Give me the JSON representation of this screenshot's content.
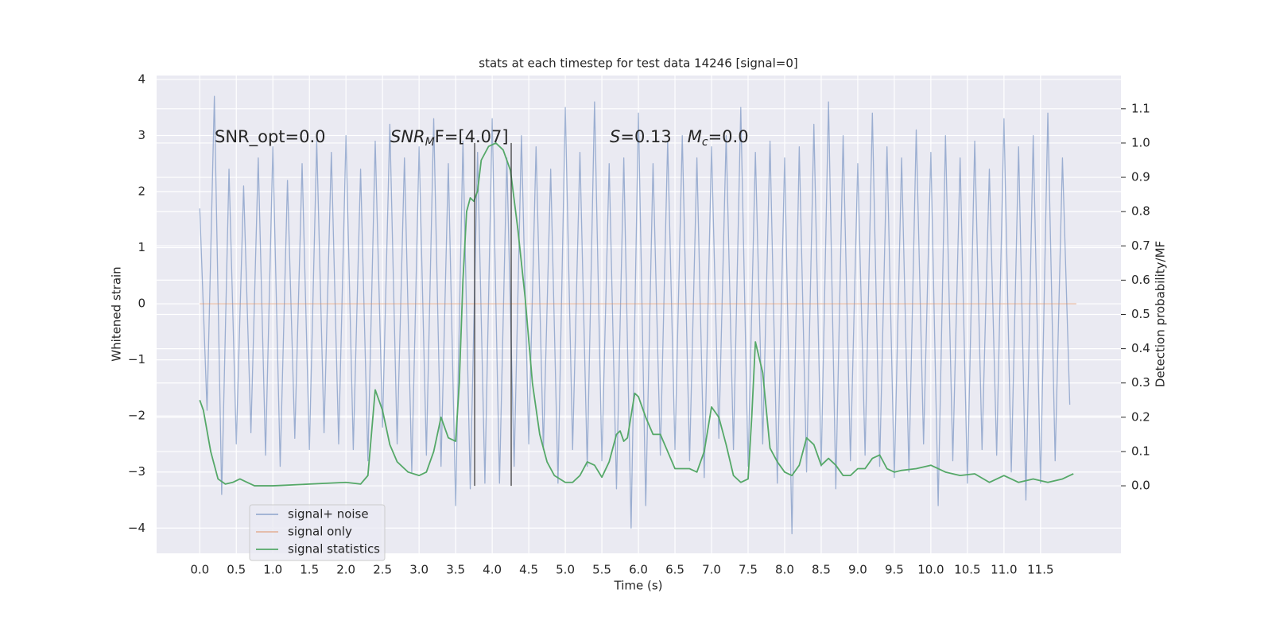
{
  "chart_data": {
    "type": "line",
    "title": "stats at each timestep for test data 14246 [signal=0]",
    "xlabel": "Time (s)",
    "ylabel": "Whitened strain",
    "y2label": "Detection probability/MF",
    "grid": true,
    "legend": "lower left",
    "xlim": [
      -0.59,
      12.6
    ],
    "ylim": [
      -4.45,
      4.07
    ],
    "y2lim": [
      -0.197,
      1.197
    ],
    "xticks": [
      {
        "value": 0,
        "label": "0.0"
      },
      0.5,
      {
        "value": 1,
        "label": "1.0"
      },
      1.5,
      {
        "value": 2,
        "label": "2.0"
      },
      2.5,
      {
        "value": 3,
        "label": "3.0"
      },
      3.5,
      {
        "value": 4,
        "label": "4.0"
      },
      4.5,
      {
        "value": 5,
        "label": "5.0"
      },
      5.5,
      {
        "value": 6,
        "label": "6.0"
      },
      6.5,
      {
        "value": 7,
        "label": "7.0"
      },
      7.5,
      {
        "value": 8,
        "label": "8.0"
      },
      8.5,
      {
        "value": 9,
        "label": "9.0"
      },
      9.5,
      {
        "value": 10,
        "label": "10.0"
      },
      10.5,
      {
        "value": 11,
        "label": "11.0"
      },
      11.5
    ],
    "yticks": [
      {
        "value": -4,
        "label": "−4"
      },
      {
        "value": -3,
        "label": "−3"
      },
      {
        "value": -2,
        "label": "−2"
      },
      {
        "value": -1,
        "label": "−1"
      },
      0,
      1,
      2,
      3,
      4
    ],
    "y2ticks": [
      {
        "value": 0,
        "label": "0.0"
      },
      0.1,
      0.2,
      0.3,
      0.4,
      0.5,
      0.6,
      0.7,
      0.8,
      0.9,
      {
        "value": 1,
        "label": "1.0"
      },
      1.1
    ],
    "annotations": [
      [
        {
          "text": "SNR_opt=0.0"
        }
      ],
      [
        {
          "text": "SNR",
          "italic": true
        },
        {
          "text": "M",
          "italic": true,
          "sub": true
        },
        {
          "text": "F=[4.07]"
        }
      ],
      [
        {
          "text": "S",
          "italic": true
        },
        {
          "text": "=0.13   "
        },
        {
          "text": "M",
          "italic": true
        },
        {
          "text": "c",
          "italic": true,
          "sub": true
        },
        {
          "text": "=0.0"
        }
      ]
    ],
    "vlines": {
      "x": [
        3.76,
        4.26
      ],
      "ymin": 0,
      "ymax": 1.0,
      "axis": "y2",
      "color": "#333333"
    },
    "series": [
      {
        "name": "signal+ noise",
        "color": "#4c72b0",
        "opacity": 0.5,
        "x": [
          0,
          0.1,
          0.2,
          0.3,
          0.4,
          0.5,
          0.6,
          0.7,
          0.8,
          0.9,
          1,
          1.1,
          1.2,
          1.3,
          1.4,
          1.5,
          1.6,
          1.7,
          1.8,
          1.9,
          2,
          2.1,
          2.2,
          2.3,
          2.4,
          2.5,
          2.6,
          2.7,
          2.8,
          2.9,
          3,
          3.1,
          3.2,
          3.3,
          3.4,
          3.5,
          3.6,
          3.7,
          3.8,
          3.9,
          4,
          4.1,
          4.2,
          4.3,
          4.4,
          4.5,
          4.6,
          4.7,
          4.8,
          4.9,
          5,
          5.1,
          5.2,
          5.3,
          5.4,
          5.5,
          5.6,
          5.7,
          5.8,
          5.9,
          6,
          6.1,
          6.2,
          6.3,
          6.4,
          6.5,
          6.6,
          6.7,
          6.8,
          6.9,
          7,
          7.1,
          7.2,
          7.3,
          7.4,
          7.5,
          7.6,
          7.7,
          7.8,
          7.9,
          8,
          8.1,
          8.2,
          8.3,
          8.4,
          8.5,
          8.6,
          8.7,
          8.8,
          8.9,
          9,
          9.1,
          9.2,
          9.3,
          9.4,
          9.5,
          9.6,
          9.7,
          9.8,
          9.9,
          10,
          10.1,
          10.2,
          10.3,
          10.4,
          10.5,
          10.6,
          10.7,
          10.8,
          10.9,
          11,
          11.1,
          11.2,
          11.3,
          11.4,
          11.5,
          11.6,
          11.7,
          11.8,
          11.9
        ],
        "values": [
          1.7,
          -1.9,
          3.7,
          -3.4,
          2.4,
          -2.5,
          2.1,
          -2.3,
          2.6,
          -2.7,
          2.8,
          -2.9,
          2.2,
          -2.4,
          2.5,
          -2.6,
          2.9,
          -2.3,
          2.7,
          -2.5,
          3.0,
          -2.6,
          2.4,
          -2.8,
          2.9,
          -2.2,
          3.2,
          -2.5,
          2.6,
          -3.0,
          2.8,
          -2.7,
          3.3,
          -2.9,
          2.5,
          -3.6,
          2.9,
          -3.3,
          2.7,
          -3.2,
          3.3,
          -3.2,
          2.6,
          -2.9,
          3.0,
          -2.5,
          2.8,
          -2.6,
          2.4,
          -3.2,
          3.5,
          -2.6,
          2.7,
          -2.9,
          3.6,
          -2.8,
          2.5,
          -3.3,
          2.6,
          -4.0,
          3.4,
          -3.6,
          2.5,
          -2.7,
          2.9,
          -2.6,
          3.0,
          -2.8,
          2.6,
          -3.1,
          2.8,
          -2.4,
          3.0,
          -2.6,
          3.5,
          -2.9,
          2.7,
          -2.5,
          2.9,
          -3.2,
          2.6,
          -4.1,
          2.8,
          -3.0,
          3.2,
          -2.9,
          3.6,
          -3.3,
          3.0,
          -2.8,
          2.5,
          -2.7,
          3.4,
          -2.9,
          2.8,
          -3.1,
          2.6,
          -3.0,
          3.1,
          -2.5,
          2.7,
          -3.6,
          3.0,
          -2.8,
          2.6,
          -3.2,
          2.9,
          -2.6,
          2.4,
          -2.7,
          3.3,
          -3.0,
          2.8,
          -3.5,
          3.0,
          -3.2,
          3.4,
          -2.8,
          2.6,
          -1.8
        ]
      },
      {
        "name": "signal only",
        "color": "#dd8452",
        "opacity": 0.5,
        "x": [
          0,
          11.99
        ],
        "values": [
          0,
          0
        ]
      },
      {
        "name": "signal statistics",
        "color": "#55a868",
        "opacity": 1,
        "axis": "y2",
        "x": [
          0,
          0.05,
          0.15,
          0.25,
          0.35,
          0.45,
          0.55,
          0.65,
          0.75,
          1.0,
          1.5,
          2.0,
          2.2,
          2.3,
          2.4,
          2.5,
          2.6,
          2.7,
          2.85,
          3.0,
          3.1,
          3.2,
          3.3,
          3.4,
          3.5,
          3.55,
          3.6,
          3.65,
          3.7,
          3.75,
          3.8,
          3.85,
          3.95,
          4.05,
          4.15,
          4.25,
          4.35,
          4.45,
          4.55,
          4.65,
          4.75,
          4.85,
          5.0,
          5.1,
          5.2,
          5.3,
          5.4,
          5.5,
          5.6,
          5.7,
          5.75,
          5.8,
          5.85,
          5.95,
          6.0,
          6.1,
          6.2,
          6.3,
          6.4,
          6.5,
          6.7,
          6.8,
          6.9,
          7.0,
          7.1,
          7.2,
          7.3,
          7.4,
          7.5,
          7.55,
          7.6,
          7.7,
          7.8,
          7.9,
          8.0,
          8.1,
          8.2,
          8.3,
          8.4,
          8.5,
          8.6,
          8.7,
          8.8,
          8.9,
          9.0,
          9.1,
          9.2,
          9.3,
          9.4,
          9.5,
          9.6,
          9.8,
          10.0,
          10.2,
          10.4,
          10.6,
          10.8,
          11.0,
          11.2,
          11.4,
          11.6,
          11.8,
          11.95
        ],
        "values": [
          0.25,
          0.22,
          0.1,
          0.02,
          0.005,
          0.01,
          0.02,
          0.01,
          0.0,
          0.0,
          0.005,
          0.01,
          0.005,
          0.03,
          0.28,
          0.22,
          0.12,
          0.07,
          0.04,
          0.03,
          0.04,
          0.1,
          0.2,
          0.14,
          0.13,
          0.3,
          0.6,
          0.8,
          0.84,
          0.83,
          0.86,
          0.95,
          0.99,
          1.0,
          0.98,
          0.92,
          0.75,
          0.55,
          0.3,
          0.15,
          0.07,
          0.03,
          0.01,
          0.01,
          0.03,
          0.07,
          0.06,
          0.025,
          0.07,
          0.15,
          0.16,
          0.13,
          0.14,
          0.27,
          0.26,
          0.2,
          0.15,
          0.15,
          0.1,
          0.05,
          0.05,
          0.04,
          0.1,
          0.23,
          0.2,
          0.12,
          0.03,
          0.01,
          0.02,
          0.2,
          0.42,
          0.33,
          0.11,
          0.07,
          0.04,
          0.03,
          0.06,
          0.14,
          0.12,
          0.06,
          0.08,
          0.06,
          0.03,
          0.03,
          0.05,
          0.05,
          0.08,
          0.09,
          0.05,
          0.04,
          0.045,
          0.05,
          0.06,
          0.04,
          0.03,
          0.035,
          0.01,
          0.03,
          0.01,
          0.02,
          0.01,
          0.02,
          0.035
        ]
      }
    ]
  }
}
